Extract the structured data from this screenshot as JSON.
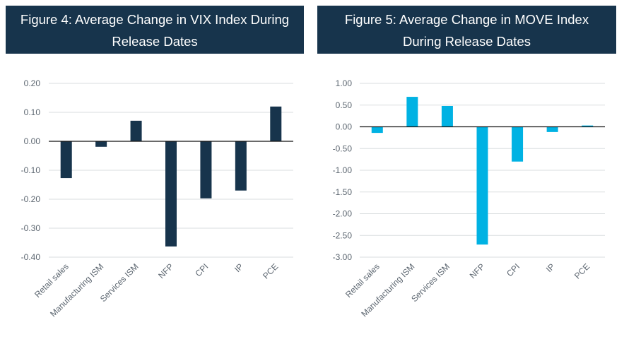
{
  "figures": [
    {
      "title_line1": "Figure 4: Average Change in VIX Index During",
      "title_line2": "Release Dates"
    },
    {
      "title_line1": "Figure 5: Average Change in MOVE Index",
      "title_line2": "During Release Dates"
    }
  ],
  "colors": {
    "header_bg": "#17344c",
    "header_text": "#ffffff",
    "vix_bar": "#17344c",
    "move_bar": "#00b2e3",
    "grid": "#d9dddf",
    "axis_text": "#5c6670"
  },
  "chart_data": [
    {
      "type": "bar",
      "title": "Figure 4: Average Change in VIX Index During Release Dates",
      "xlabel": "",
      "ylabel": "",
      "categories": [
        "Retail sales",
        "Manufacturing ISM",
        "Services ISM",
        "NFP",
        "CPI",
        "IP",
        "PCE"
      ],
      "values": [
        -0.127,
        -0.019,
        0.071,
        -0.363,
        -0.197,
        -0.17,
        0.12
      ],
      "ylim": [
        -0.4,
        0.2
      ],
      "yticks": [
        0.2,
        0.1,
        0.0,
        -0.1,
        -0.2,
        -0.3,
        -0.4
      ],
      "ytick_labels": [
        "0.20",
        "0.10",
        "0.00",
        "-0.10",
        "-0.20",
        "-0.30",
        "-0.40"
      ],
      "grid": true,
      "legend": "none",
      "color": "#17344c"
    },
    {
      "type": "bar",
      "title": "Figure 5: Average Change in MOVE Index During Release Dates",
      "xlabel": "",
      "ylabel": "",
      "categories": [
        "Retail sales",
        "Manufacturing ISM",
        "Services ISM",
        "NFP",
        "CPI",
        "IP",
        "PCE"
      ],
      "values": [
        -0.14,
        0.69,
        0.48,
        -2.71,
        -0.8,
        -0.12,
        0.03
      ],
      "ylim": [
        -3.0,
        1.0
      ],
      "yticks": [
        1.0,
        0.5,
        0.0,
        -0.5,
        -1.0,
        -1.5,
        -2.0,
        -2.5,
        -3.0
      ],
      "ytick_labels": [
        "1.00",
        "0.50",
        "0.00",
        "-0.50",
        "-1.00",
        "-1.50",
        "-2.00",
        "-2.50",
        "-3.00"
      ],
      "grid": true,
      "legend": "none",
      "color": "#00b2e3"
    }
  ]
}
